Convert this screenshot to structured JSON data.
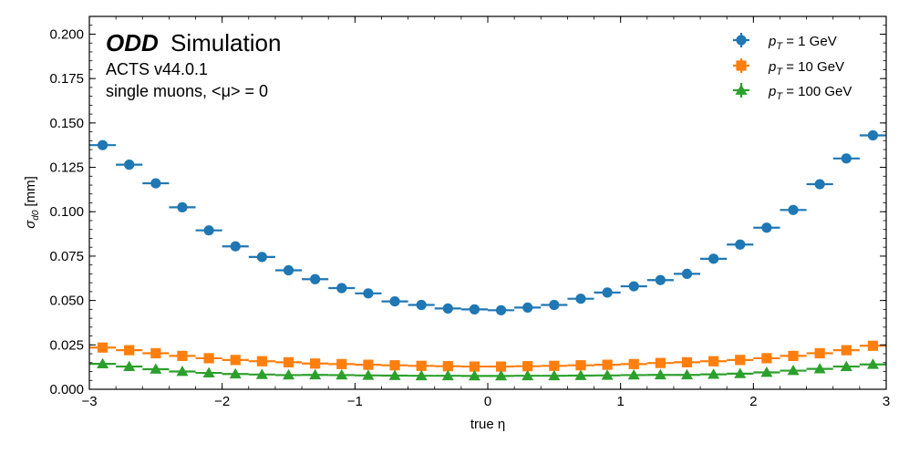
{
  "chart_data": {
    "type": "scatter",
    "title": "",
    "annotation": {
      "brand": "ODD",
      "brand_suffix": "Simulation",
      "line1": "ACTS v44.0.1",
      "line2": "single muons, <μ> = 0"
    },
    "xlabel": "true η",
    "ylabel": "σ_{d0} [mm]",
    "ylabel_main": "σ",
    "ylabel_sub": "d0",
    "ylabel_unit": "[mm]",
    "xlim": [
      -3,
      3
    ],
    "ylim": [
      0,
      0.21
    ],
    "xticks": [
      -3,
      -2,
      -1,
      0,
      1,
      2,
      3
    ],
    "xtick_labels": [
      "−3",
      "−2",
      "−1",
      "0",
      "1",
      "2",
      "3"
    ],
    "yticks": [
      0,
      0.025,
      0.05,
      0.075,
      0.1,
      0.125,
      0.15,
      0.175,
      0.2
    ],
    "ytick_labels": [
      "0.000",
      "0.025",
      "0.050",
      "0.075",
      "0.100",
      "0.125",
      "0.150",
      "0.175",
      "0.200"
    ],
    "x_bin_half_width": 0.1,
    "legend_position": "top-right",
    "x": [
      -2.9,
      -2.7,
      -2.5,
      -2.3,
      -2.1,
      -1.9,
      -1.7,
      -1.5,
      -1.3,
      -1.1,
      -0.9,
      -0.7,
      -0.5,
      -0.3,
      -0.1,
      0.1,
      0.3,
      0.5,
      0.7,
      0.9,
      1.1,
      1.3,
      1.5,
      1.7,
      1.9,
      2.1,
      2.3,
      2.5,
      2.7,
      2.9
    ],
    "series": [
      {
        "name": "p_T = 1 GeV",
        "label_p": "p",
        "label_sub": "T",
        "label_rest": " = 1 GeV",
        "color": "#1f77b4",
        "marker": "circle",
        "values": [
          0.1375,
          0.1265,
          0.116,
          0.1025,
          0.0895,
          0.0805,
          0.0745,
          0.067,
          0.062,
          0.057,
          0.054,
          0.0495,
          0.0475,
          0.0455,
          0.045,
          0.0445,
          0.046,
          0.0475,
          0.051,
          0.0545,
          0.058,
          0.0615,
          0.065,
          0.0735,
          0.0815,
          0.091,
          0.101,
          0.1155,
          0.13,
          0.143
        ]
      },
      {
        "name": "p_T = 10 GeV",
        "label_p": "p",
        "label_sub": "T",
        "label_rest": " = 10 GeV",
        "color": "#ff7f0e",
        "marker": "square",
        "values": [
          0.0235,
          0.022,
          0.0203,
          0.0188,
          0.0175,
          0.0165,
          0.0158,
          0.0152,
          0.0145,
          0.0142,
          0.0138,
          0.0135,
          0.0132,
          0.013,
          0.0128,
          0.0128,
          0.013,
          0.0132,
          0.0135,
          0.0138,
          0.0142,
          0.0148,
          0.0152,
          0.0158,
          0.0165,
          0.0175,
          0.0188,
          0.0203,
          0.022,
          0.0245
        ]
      },
      {
        "name": "p_T = 100 GeV",
        "label_p": "p",
        "label_sub": "T",
        "label_rest": " = 100 GeV",
        "color": "#2ca02c",
        "marker": "triangle",
        "values": [
          0.0143,
          0.0128,
          0.0113,
          0.01,
          0.0092,
          0.0086,
          0.0083,
          0.008,
          0.0081,
          0.008,
          0.0078,
          0.0077,
          0.0076,
          0.0076,
          0.0075,
          0.0075,
          0.0076,
          0.0076,
          0.0077,
          0.0078,
          0.008,
          0.0081,
          0.0081,
          0.0084,
          0.0088,
          0.0095,
          0.0105,
          0.0115,
          0.0128,
          0.014
        ]
      }
    ]
  }
}
